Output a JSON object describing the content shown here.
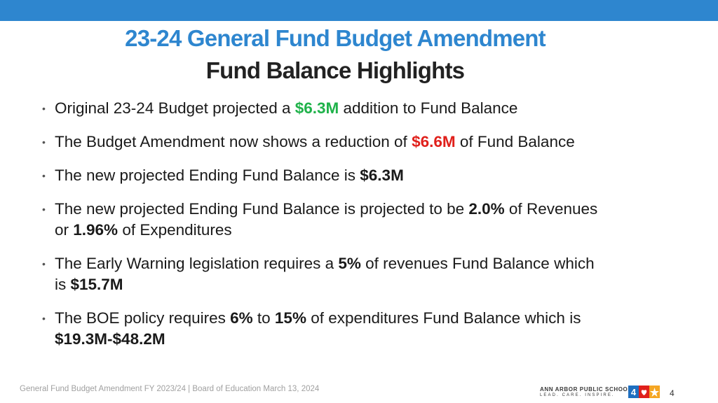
{
  "slide": {
    "title_line1": "23-24 General Fund Budget Amendment",
    "title_line2": "Fund Balance Highlights"
  },
  "bullets": {
    "b1": {
      "pre": "Original 23-24 Budget projected a ",
      "val": "$6.3M",
      "post": " addition to Fund Balance"
    },
    "b2": {
      "pre": "The Budget Amendment now shows a reduction of ",
      "val": "$6.6M",
      "post": " of Fund Balance"
    },
    "b3": {
      "pre": "The new projected Ending Fund Balance is ",
      "val": "$6.3M"
    },
    "b4": {
      "pre": "The new projected Ending Fund Balance is projected to be ",
      "val1": "2.0%",
      "mid": " of Revenues",
      "pre2": "or ",
      "val2": "1.96%",
      "post": " of Expenditures"
    },
    "b5": {
      "pre": "The Early Warning legislation requires a ",
      "val1": "5%",
      "mid": " of revenues Fund Balance which",
      "pre2": "is ",
      "val2": "$15.7M"
    },
    "b6": {
      "pre": "The BOE policy requires ",
      "val1": "6%",
      "mid1": " to ",
      "val2": "15%",
      "mid2": " of expenditures Fund Balance which is",
      "val3": "$19.3M-$48.2M"
    }
  },
  "footer": {
    "text": "General Fund Budget Amendment FY 2023/24 | Board of Education March 13, 2024",
    "logo_name": "ANN ARBOR PUBLIC SCHOOLS",
    "logo_tagline": "LEAD. CARE. INSPIRE.",
    "page_number": "4"
  },
  "colors": {
    "header_bar": "#2e86cf",
    "title_blue": "#2e86cf",
    "highlight_green": "#1fb24a",
    "highlight_red": "#e0201b",
    "logo_blue": "#1f6fc0",
    "logo_red": "#e0201b",
    "logo_yellow": "#f5a623"
  },
  "icons": {
    "bullet": "bullet-dot-icon",
    "logo": "a2-heart-star-logo-icon"
  }
}
